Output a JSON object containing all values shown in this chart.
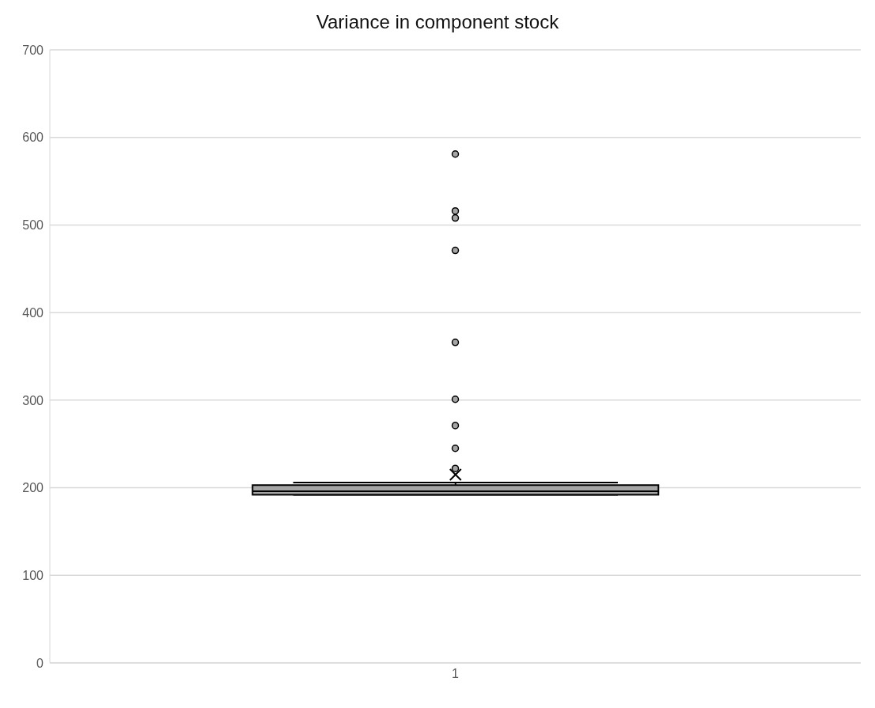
{
  "chart_data": {
    "type": "box",
    "title": "Variance in component stock",
    "categories": [
      "1"
    ],
    "color": "#a5a5a5",
    "boxes": [
      {
        "low": 192,
        "q1": 192,
        "median": 196,
        "q3": 203,
        "high": 206,
        "mean": 215,
        "outliers": [
          222,
          245,
          271,
          301,
          366,
          471,
          508,
          516,
          581
        ]
      }
    ],
    "ylim": [
      0,
      700
    ],
    "yticks": [
      0,
      100,
      200,
      300,
      400,
      500,
      600,
      700
    ],
    "grid": "y",
    "marker": "circle"
  }
}
